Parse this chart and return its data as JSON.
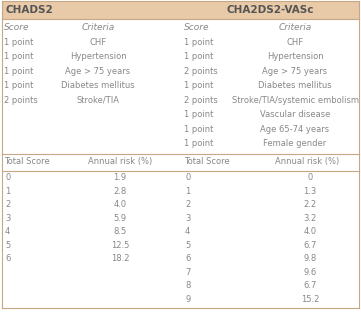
{
  "header_bg": "#e8c9a8",
  "header_text_color": "#555555",
  "body_bg": "#ffffff",
  "line_color": "#c8a882",
  "text_color": "#888888",
  "title_left": "CHADS2",
  "title_right": "CHA2DS2-VASc",
  "chads2_criteria": [
    [
      "1 point",
      "CHF"
    ],
    [
      "1 point",
      "Hypertension"
    ],
    [
      "1 point",
      "Age > 75 years"
    ],
    [
      "1 point",
      "Diabetes mellitus"
    ],
    [
      "2 points",
      "Stroke/TIA"
    ]
  ],
  "cha2ds2_criteria": [
    [
      "1 point",
      "CHF"
    ],
    [
      "1 point",
      "Hypertension"
    ],
    [
      "2 points",
      "Age > 75 years"
    ],
    [
      "1 point",
      "Diabetes mellitus"
    ],
    [
      "2 points",
      "Stroke/TIA/systemic embolism"
    ],
    [
      "1 point",
      "Vascular disease"
    ],
    [
      "1 point",
      "Age 65-74 years"
    ],
    [
      "1 point",
      "Female gender"
    ]
  ],
  "chads2_risk": [
    [
      "0",
      "1.9"
    ],
    [
      "1",
      "2.8"
    ],
    [
      "2",
      "4.0"
    ],
    [
      "3",
      "5.9"
    ],
    [
      "4",
      "8.5"
    ],
    [
      "5",
      "12.5"
    ],
    [
      "6",
      "18.2"
    ]
  ],
  "cha2ds2_risk": [
    [
      "0",
      "0"
    ],
    [
      "1",
      "1.3"
    ],
    [
      "2",
      "2.2"
    ],
    [
      "3",
      "3.2"
    ],
    [
      "4",
      "4.0"
    ],
    [
      "5",
      "6.7"
    ],
    [
      "6",
      "9.8"
    ],
    [
      "7",
      "9.6"
    ],
    [
      "8",
      "6.7"
    ],
    [
      "9",
      "15.2"
    ]
  ],
  "figsize": [
    3.61,
    3.19
  ],
  "dpi": 100
}
